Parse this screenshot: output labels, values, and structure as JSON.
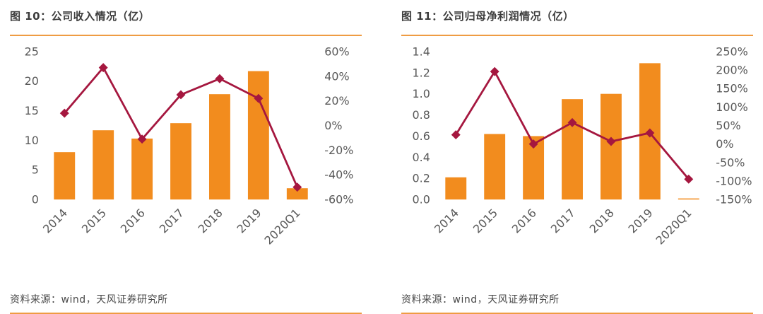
{
  "page": {
    "bar_color": "#F28C1E",
    "line_color": "#A5173F",
    "rule_color": "#EF9C43",
    "axis_text_color": "#595959",
    "title_color": "#3C3C3C",
    "source_color": "#4A4A4A"
  },
  "chart_data": [
    {
      "type": "bar",
      "subtype": "bar+line dual axis",
      "title": "图 10：公司收入情况（亿）",
      "source": "资料来源：wind，天风证券研究所",
      "categories": [
        "2014",
        "2015",
        "2016",
        "2017",
        "2018",
        "2019",
        "2020Q1"
      ],
      "series": [
        {
          "type": "bar",
          "axis": "left",
          "values": [
            8.0,
            11.7,
            10.3,
            12.9,
            17.8,
            21.7,
            1.9
          ]
        },
        {
          "type": "line",
          "axis": "right",
          "values": [
            10,
            47,
            -11,
            25,
            38,
            22,
            -50
          ]
        }
      ],
      "left_axis": {
        "min": 0,
        "max": 25,
        "step": 5,
        "labels": [
          "0",
          "5",
          "10",
          "15",
          "20",
          "25"
        ]
      },
      "right_axis": {
        "min": -60,
        "max": 60,
        "step": 20,
        "labels": [
          "-60%",
          "-40%",
          "-20%",
          "0%",
          "20%",
          "40%",
          "60%"
        ]
      },
      "grid": false,
      "legend": "none"
    },
    {
      "type": "bar",
      "subtype": "bar+line dual axis",
      "title": "图 11：公司归母净利润情况（亿）",
      "source": "资料来源：wind，天风证券研究所",
      "categories": [
        "2014",
        "2015",
        "2016",
        "2017",
        "2018",
        "2019",
        "2020Q1"
      ],
      "series": [
        {
          "type": "bar",
          "axis": "left",
          "values": [
            0.21,
            0.62,
            0.6,
            0.95,
            1.0,
            1.29,
            0.01
          ]
        },
        {
          "type": "line",
          "axis": "right",
          "values": [
            25,
            196,
            0,
            58,
            7,
            30,
            -95
          ]
        }
      ],
      "left_axis": {
        "min": 0,
        "max": 1.4,
        "step": 0.2,
        "labels": [
          "0.0",
          "0.2",
          "0.4",
          "0.6",
          "0.8",
          "1.0",
          "1.2",
          "1.4"
        ]
      },
      "right_axis": {
        "min": -150,
        "max": 250,
        "step": 50,
        "labels": [
          "-150%",
          "-100%",
          "-50%",
          "0%",
          "50%",
          "100%",
          "150%",
          "200%",
          "250%"
        ]
      },
      "grid": false,
      "legend": "none"
    }
  ]
}
